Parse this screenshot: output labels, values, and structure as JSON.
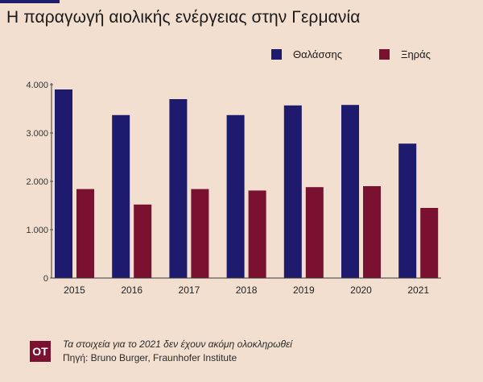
{
  "header": {
    "title": "Η παραγωγή αιολικής ενέργειας στην Γερμανία"
  },
  "colors": {
    "offshore": "#1e1a6e",
    "onshore": "#7b1130",
    "background": "#f2dfcf",
    "axis": "#3a3a3a"
  },
  "chart_data": {
    "type": "bar",
    "title": "Η παραγωγή αιολικής ενέργειας στην Γερμανία",
    "categories": [
      "2015",
      "2016",
      "2017",
      "2018",
      "2019",
      "2020",
      "2021"
    ],
    "series": [
      {
        "name": "Θαλάσσης",
        "values": [
          3900,
          3370,
          3700,
          3370,
          3570,
          3580,
          2780
        ]
      },
      {
        "name": "Ξηράς",
        "values": [
          1840,
          1520,
          1840,
          1810,
          1880,
          1900,
          1450
        ]
      }
    ],
    "yticks": [
      0,
      1000,
      2000,
      3000,
      4000
    ],
    "ytick_labels": [
      "0",
      "1.000",
      "2.000",
      "3.000",
      "4.000"
    ],
    "ylim": [
      0,
      4000
    ],
    "grid": false,
    "legend_position": "top-right",
    "xlabel": "",
    "ylabel": ""
  },
  "footer": {
    "logo_text": "OT",
    "note": "Τα στοιχεία για το 2021 δεν έχουν ακόμη ολοκληρωθεί",
    "source": "Πηγή:  Bruno Burger, Fraunhofer Institute"
  }
}
